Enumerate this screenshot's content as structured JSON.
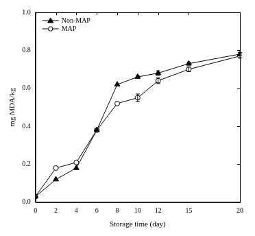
{
  "chart_data": {
    "type": "line",
    "x_label": "Storage time (day)",
    "y_label": "mg MDA/kg",
    "x": [
      0,
      2,
      4,
      6,
      8,
      10,
      12,
      15,
      20
    ],
    "series": [
      {
        "name": "Non-MAP",
        "color": "#000000",
        "marker": "filled_triangle",
        "line_style": "solid",
        "values": [
          0.03,
          0.12,
          0.18,
          0.38,
          0.62,
          0.66,
          0.68,
          0.73,
          0.78
        ],
        "errors": [
          0,
          0,
          0,
          0,
          0,
          0.005,
          0.012,
          0.008,
          0.008
        ]
      },
      {
        "name": "MAP",
        "color": "#000000",
        "marker": "open_circle",
        "line_style": "solid",
        "values": [
          0.03,
          0.18,
          0.21,
          0.38,
          0.52,
          0.55,
          0.64,
          0.7,
          0.77
        ],
        "errors": [
          0,
          0,
          0,
          0,
          0,
          0.02,
          0.015,
          0.012,
          0.01
        ]
      }
    ],
    "xlim": [
      0,
      20
    ],
    "xticks": [
      0,
      2,
      4,
      6,
      8,
      10,
      12,
      15,
      20
    ],
    "ylim": [
      0,
      1.0
    ],
    "yticks": [
      {
        "value": 0,
        "label": "0.0"
      },
      {
        "value": 0.2,
        "label": "0.2"
      },
      {
        "value": 0.4,
        "label": "0.4"
      },
      {
        "value": 0.6,
        "label": "0.6"
      },
      {
        "value": 0.8,
        "label": "0.8"
      },
      {
        "value": 1.0,
        "label": "1.0"
      }
    ],
    "grid": false,
    "legend": "upper left"
  }
}
